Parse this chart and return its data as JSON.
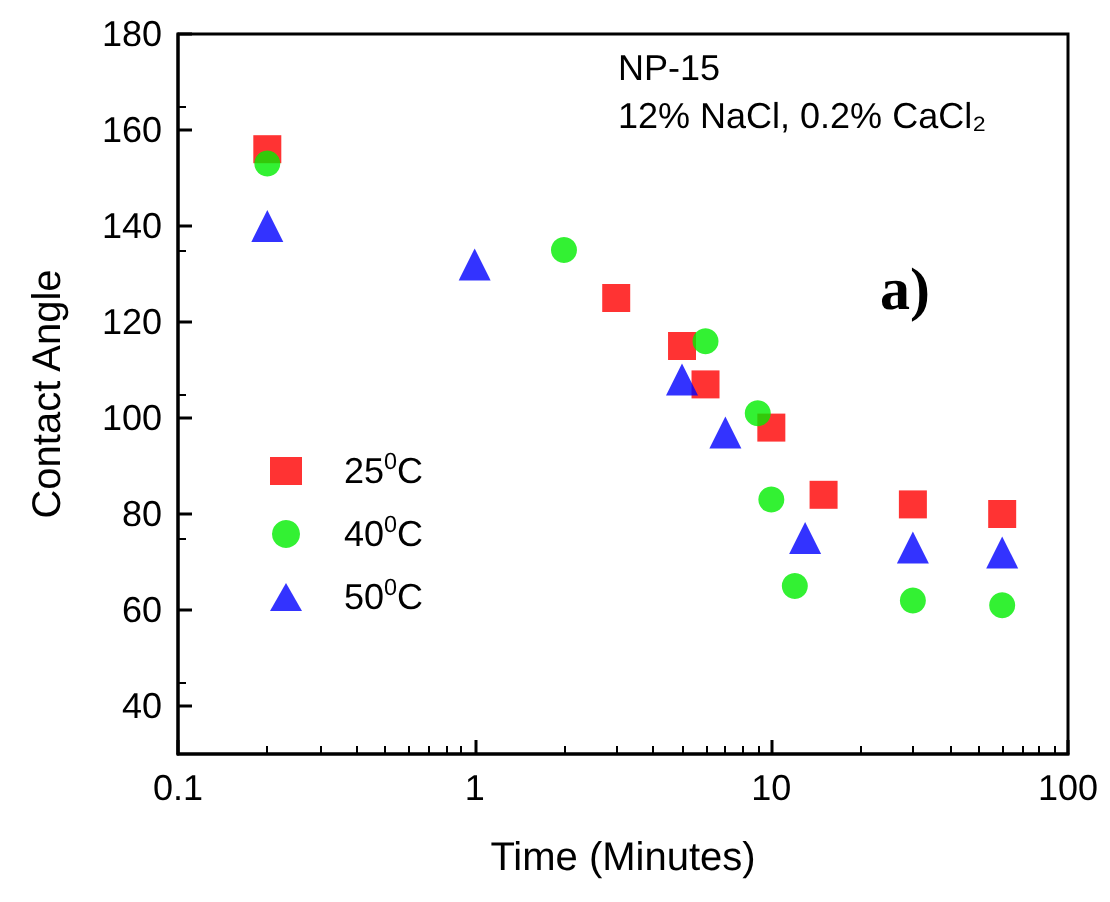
{
  "chart_data": {
    "type": "scatter",
    "title": "NP-15",
    "subtitle": "12% NaCl, 0.2% CaCl₂",
    "xlabel": "Time (Minutes)",
    "ylabel": "Contact Angle",
    "annotations": [
      "a)"
    ],
    "log": "x",
    "xlim": [
      0.1,
      100
    ],
    "xticks": [
      0.1,
      1,
      10,
      100
    ],
    "ylim": [
      30,
      180
    ],
    "yticks": [
      40,
      60,
      80,
      100,
      120,
      140,
      160,
      180
    ],
    "grid": false,
    "legend": "left",
    "series": [
      {
        "name": "25$^{0}$C",
        "color": "#ff0000",
        "marker": "square",
        "x": [
          0.2,
          3,
          5,
          6,
          10,
          15,
          30,
          60
        ],
        "values": [
          156,
          125,
          115,
          107,
          98,
          84,
          82,
          80
        ]
      },
      {
        "name": "40$^{0}$C",
        "color": "#00ee00",
        "marker": "circle",
        "x": [
          0.2,
          2,
          6,
          9,
          10,
          12,
          30,
          60
        ],
        "values": [
          153,
          135,
          116,
          101,
          83,
          65,
          62,
          61
        ]
      },
      {
        "name": "50$^{0}$C",
        "color": "#0000ff",
        "marker": "triangle",
        "x": [
          0.2,
          1,
          5,
          7,
          13,
          30,
          60
        ],
        "values": [
          140,
          132,
          108,
          97,
          75,
          73,
          72
        ]
      }
    ]
  }
}
